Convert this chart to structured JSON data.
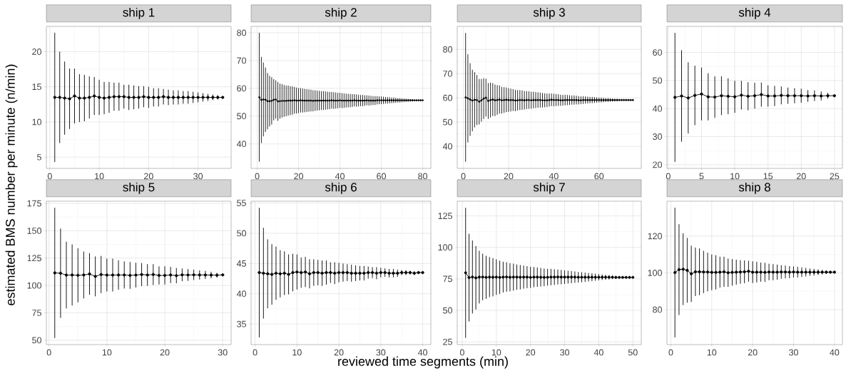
{
  "chart_data": [
    {
      "type": "line",
      "title": "ship 1",
      "ylabel": "estimated BMS number per minute (n/min)",
      "grid": true,
      "marker": "circle",
      "x": [
        1,
        2,
        3,
        4,
        5,
        6,
        7,
        8,
        9,
        10,
        11,
        12,
        13,
        14,
        15,
        16,
        17,
        18,
        19,
        20,
        21,
        22,
        23,
        24,
        25,
        26,
        27,
        28,
        29,
        30,
        31,
        32,
        33,
        34,
        35
      ],
      "series": [
        {
          "color": "#000000",
          "values": [
            13.5,
            13.5,
            13.4,
            13.3,
            13.7,
            13.4,
            13.4,
            13.5,
            13.7,
            13.5,
            13.4,
            13.5,
            13.6,
            13.6,
            13.6,
            13.5,
            13.5,
            13.5,
            13.6,
            13.5,
            13.5,
            13.5,
            13.6,
            13.5,
            13.5,
            13.5,
            13.5,
            13.5,
            13.5,
            13.5,
            13.5,
            13.5,
            13.5,
            13.5,
            13.5
          ],
          "errors": [
            9.2,
            6.5,
            5.2,
            4.3,
            3.9,
            3.4,
            3.3,
            3.0,
            2.7,
            2.5,
            2.3,
            2.2,
            2.0,
            2.0,
            1.7,
            1.8,
            1.7,
            1.6,
            1.5,
            1.5,
            1.3,
            1.3,
            1.1,
            1.1,
            1.0,
            1.0,
            0.9,
            0.9,
            0.8,
            0.7,
            0.6,
            0.5,
            0.4,
            0.3,
            null
          ]
        }
      ],
      "xlim": [
        -0.7,
        36.7
      ],
      "ylim": [
        3.4,
        23.6
      ],
      "xticks": [
        0,
        10,
        20,
        30
      ],
      "yticks": [
        5,
        10,
        15,
        20
      ]
    },
    {
      "type": "line",
      "title": "ship 2",
      "grid": true,
      "marker": "circle",
      "x": [
        1,
        2,
        3,
        4,
        5,
        6,
        7,
        8,
        9,
        10,
        11,
        12,
        13,
        14,
        15,
        16,
        17,
        18,
        19,
        20,
        21,
        22,
        23,
        24,
        25,
        26,
        27,
        28,
        29,
        30,
        31,
        32,
        33,
        34,
        35,
        36,
        37,
        38,
        39,
        40,
        41,
        42,
        43,
        44,
        45,
        46,
        47,
        48,
        49,
        50,
        51,
        52,
        53,
        54,
        55,
        56,
        57,
        58,
        59,
        60,
        61,
        62,
        63,
        64,
        65,
        66,
        67,
        68,
        69,
        70,
        71,
        72,
        73,
        74,
        75,
        76,
        77,
        78,
        79,
        80
      ],
      "series": [
        {
          "color": "#000000",
          "values": [
            56.8,
            55.8,
            56.0,
            55.9,
            55.4,
            55.4,
            55.5,
            55.9,
            56.0,
            55.3,
            55.4,
            55.5,
            55.5,
            55.5,
            55.6,
            55.6,
            55.6,
            55.7,
            55.6,
            55.6,
            55.7,
            55.6,
            55.6,
            55.6,
            55.6,
            55.6,
            55.5,
            55.6,
            55.6,
            55.6,
            55.6,
            55.6,
            55.6,
            55.6,
            55.6,
            55.7,
            55.6,
            55.6,
            55.6,
            55.7,
            55.6,
            55.6,
            55.6,
            55.6,
            55.6,
            55.6,
            55.7,
            55.6,
            55.6,
            55.6,
            55.6,
            55.6,
            55.7,
            55.6,
            55.6,
            55.6,
            55.6,
            55.7,
            55.7,
            55.7,
            55.7,
            55.7,
            55.7,
            55.7,
            55.7,
            55.7,
            55.7,
            55.7,
            55.7,
            55.7,
            55.7,
            55.7,
            55.7,
            55.7,
            55.7,
            55.7,
            55.7,
            55.7,
            55.7,
            55.7
          ],
          "errors": [
            23.2,
            15.5,
            13.3,
            11.6,
            10.1,
            9.1,
            8.5,
            7.4,
            6.9,
            7.0,
            6.3,
            6.0,
            5.7,
            5.5,
            5.4,
            5.2,
            5.1,
            4.8,
            4.7,
            4.5,
            4.4,
            4.3,
            4.2,
            4.1,
            4.0,
            3.9,
            3.8,
            3.7,
            3.6,
            3.5,
            3.4,
            3.4,
            3.3,
            3.2,
            3.1,
            3.0,
            3.0,
            2.9,
            2.8,
            2.7,
            2.7,
            2.6,
            2.5,
            2.4,
            2.4,
            2.3,
            2.2,
            2.2,
            2.1,
            2.0,
            2.0,
            1.9,
            1.8,
            1.8,
            1.7,
            1.6,
            1.6,
            1.5,
            1.4,
            1.4,
            1.3,
            1.2,
            1.2,
            1.1,
            1.0,
            1.0,
            0.9,
            0.8,
            0.8,
            0.7,
            0.6,
            0.6,
            0.5,
            0.4,
            0.4,
            null,
            null,
            null,
            null,
            null
          ]
        }
      ],
      "xlim": [
        -2.95,
        83.95
      ],
      "ylim": [
        31.2,
        82.3
      ],
      "xticks": [
        0,
        20,
        40,
        60,
        80
      ],
      "yticks": [
        40,
        50,
        60,
        70,
        80
      ]
    },
    {
      "type": "line",
      "title": "ship 3",
      "grid": true,
      "marker": "circle",
      "x": [
        1,
        2,
        3,
        4,
        5,
        6,
        7,
        8,
        9,
        10,
        11,
        12,
        13,
        14,
        15,
        16,
        17,
        18,
        19,
        20,
        21,
        22,
        23,
        24,
        25,
        26,
        27,
        28,
        29,
        30,
        31,
        32,
        33,
        34,
        35,
        36,
        37,
        38,
        39,
        40,
        41,
        42,
        43,
        44,
        45,
        46,
        47,
        48,
        49,
        50,
        51,
        52,
        53,
        54,
        55,
        56,
        57,
        58,
        59,
        60,
        61,
        62,
        63,
        64,
        65,
        66,
        67,
        68,
        69,
        70,
        71,
        72,
        73,
        74,
        75
      ],
      "series": [
        {
          "color": "#000000",
          "values": [
            60.2,
            59.8,
            59.3,
            58.9,
            59.2,
            59.1,
            58.4,
            59.0,
            59.7,
            60.1,
            58.7,
            59.1,
            59.3,
            59.0,
            59.1,
            59.3,
            59.0,
            59.1,
            59.2,
            59.1,
            59.1,
            59.1,
            58.9,
            59.0,
            59.1,
            59.1,
            59.0,
            59.1,
            59.1,
            59.0,
            59.1,
            59.1,
            59.1,
            59.1,
            59.0,
            59.0,
            59.0,
            59.1,
            59.2,
            59.1,
            59.1,
            59.1,
            59.0,
            59.0,
            59.1,
            59.1,
            59.1,
            59.1,
            59.1,
            59.1,
            59.0,
            59.0,
            59.1,
            59.1,
            59.1,
            59.1,
            59.1,
            59.1,
            59.1,
            59.1,
            59.1,
            59.1,
            59.1,
            59.1,
            59.1,
            59.1,
            59.1,
            59.1,
            59.1,
            59.1,
            59.1,
            59.1,
            59.1,
            59.1,
            59.1
          ],
          "errors": [
            26.6,
            18.2,
            15.0,
            12.7,
            11.4,
            10.3,
            9.4,
            8.8,
            8.4,
            7.8,
            7.4,
            7.2,
            6.8,
            6.5,
            6.1,
            5.8,
            5.5,
            5.3,
            5.1,
            4.9,
            4.7,
            4.5,
            4.4,
            4.2,
            4.1,
            4.0,
            3.8,
            3.7,
            3.6,
            3.5,
            3.4,
            3.3,
            3.2,
            3.1,
            3.0,
            2.9,
            2.8,
            2.7,
            2.6,
            2.6,
            2.5,
            2.4,
            2.3,
            2.2,
            2.2,
            2.1,
            2.0,
            1.9,
            1.9,
            1.8,
            1.7,
            1.6,
            1.6,
            1.5,
            1.4,
            1.3,
            1.3,
            1.2,
            1.1,
            1.0,
            1.0,
            0.9,
            0.8,
            0.8,
            0.7,
            0.6,
            0.5,
            0.5,
            null,
            null,
            null,
            null,
            null,
            null,
            null
          ]
        }
      ],
      "xlim": [
        -2.7,
        78.7
      ],
      "ylim": [
        30.9,
        89.5
      ],
      "xticks": [
        0,
        20,
        40,
        60
      ],
      "yticks": [
        40,
        50,
        60,
        70,
        80
      ]
    },
    {
      "type": "line",
      "title": "ship 4",
      "grid": true,
      "marker": "circle",
      "x": [
        1,
        2,
        3,
        4,
        5,
        6,
        7,
        8,
        9,
        10,
        11,
        12,
        13,
        14,
        15,
        16,
        17,
        18,
        19,
        20,
        21,
        22,
        23,
        24,
        25
      ],
      "series": [
        {
          "color": "#000000",
          "values": [
            44.0,
            44.5,
            43.8,
            44.7,
            45.2,
            44.2,
            44.1,
            44.6,
            44.4,
            44.2,
            44.8,
            44.4,
            44.6,
            45.0,
            44.5,
            44.5,
            44.7,
            44.6,
            44.6,
            44.6,
            44.5,
            44.6,
            44.5,
            44.6,
            44.6
          ],
          "errors": [
            23.0,
            16.3,
            12.7,
            10.6,
            9.4,
            8.4,
            7.4,
            6.9,
            6.4,
            5.7,
            5.1,
            5.0,
            4.6,
            4.3,
            3.8,
            3.6,
            3.2,
            2.9,
            2.7,
            2.5,
            2.1,
            1.9,
            1.6,
            1.0,
            null
          ]
        }
      ],
      "xlim": [
        -0.2,
        26.2
      ],
      "ylim": [
        18.7,
        69.3
      ],
      "xticks": [
        0,
        5,
        10,
        15,
        20,
        25
      ],
      "yticks": [
        20,
        30,
        40,
        50,
        60
      ]
    },
    {
      "type": "line",
      "title": "ship 5",
      "grid": true,
      "marker": "circle",
      "x": [
        1,
        2,
        3,
        4,
        5,
        6,
        7,
        8,
        9,
        10,
        11,
        12,
        13,
        14,
        15,
        16,
        17,
        18,
        19,
        20,
        21,
        22,
        23,
        24,
        25,
        26,
        27,
        28,
        29,
        30
      ],
      "series": [
        {
          "color": "#000000",
          "values": [
            111.5,
            111.2,
            109.5,
            109.6,
            109.3,
            109.6,
            110.5,
            108.3,
            110.0,
            109.5,
            109.5,
            109.6,
            109.6,
            109.2,
            109.5,
            110.0,
            109.6,
            110.0,
            109.2,
            109.2,
            109.6,
            109.0,
            109.7,
            109.6,
            109.7,
            109.6,
            109.6,
            109.5,
            109.4,
            109.7
          ],
          "errors": [
            59.5,
            40.8,
            30.5,
            27.9,
            24.7,
            21.4,
            19.0,
            18.2,
            17.0,
            15.0,
            15.0,
            13.4,
            12.4,
            12.3,
            11.3,
            10.5,
            9.9,
            9.5,
            8.3,
            8.3,
            7.4,
            7.0,
            5.8,
            5.4,
            4.8,
            4.2,
            3.7,
            3.0,
            2.1,
            null
          ]
        }
      ],
      "xlim": [
        -0.45,
        31.45
      ],
      "ylim": [
        46,
        177
      ],
      "xticks": [
        0,
        10,
        20,
        30
      ],
      "yticks": [
        50,
        75,
        100,
        125,
        150,
        175
      ]
    },
    {
      "type": "line",
      "title": "ship 6",
      "xlabel": "reviewed time segments (min)",
      "grid": true,
      "marker": "circle",
      "x": [
        1,
        2,
        3,
        4,
        5,
        6,
        7,
        8,
        9,
        10,
        11,
        12,
        13,
        14,
        15,
        16,
        17,
        18,
        19,
        20,
        21,
        22,
        23,
        24,
        25,
        26,
        27,
        28,
        29,
        30,
        31,
        32,
        33,
        34,
        35,
        36,
        37,
        38,
        39,
        40
      ],
      "series": [
        {
          "color": "#000000",
          "values": [
            43.5,
            43.4,
            43.3,
            43.2,
            43.4,
            43.3,
            43.4,
            43.2,
            43.5,
            43.6,
            43.5,
            43.6,
            43.3,
            43.5,
            43.5,
            43.4,
            43.5,
            43.5,
            43.4,
            43.5,
            43.5,
            43.5,
            43.4,
            43.4,
            43.4,
            43.4,
            43.5,
            43.5,
            43.4,
            43.5,
            43.5,
            43.4,
            43.4,
            43.4,
            43.5,
            43.5,
            43.5,
            43.4,
            43.5,
            43.5
          ],
          "errors": [
            10.7,
            7.5,
            5.7,
            5.0,
            4.4,
            3.9,
            3.6,
            3.3,
            3.1,
            2.9,
            2.5,
            2.5,
            2.4,
            2.2,
            2.1,
            2.1,
            2.0,
            1.7,
            1.8,
            1.6,
            1.5,
            1.4,
            1.4,
            1.3,
            1.2,
            1.2,
            1.0,
            0.9,
            1.0,
            0.8,
            0.7,
            0.7,
            0.7,
            0.6,
            0.4,
            0.4,
            0.3,
            0.3,
            null,
            null
          ]
        }
      ],
      "xlim": [
        -0.95,
        41.95
      ],
      "ylim": [
        31.6,
        55.3
      ],
      "xticks": [
        0,
        10,
        20,
        30,
        40
      ],
      "yticks": [
        35,
        40,
        45,
        50,
        55
      ]
    },
    {
      "type": "line",
      "title": "ship 7",
      "grid": true,
      "marker": "circle",
      "x": [
        1,
        2,
        3,
        4,
        5,
        6,
        7,
        8,
        9,
        10,
        11,
        12,
        13,
        14,
        15,
        16,
        17,
        18,
        19,
        20,
        21,
        22,
        23,
        24,
        25,
        26,
        27,
        28,
        29,
        30,
        31,
        32,
        33,
        34,
        35,
        36,
        37,
        38,
        39,
        40,
        41,
        42,
        43,
        44,
        45,
        46,
        47,
        48,
        49,
        50
      ],
      "series": [
        {
          "color": "#000000",
          "values": [
            79.8,
            76.0,
            76.5,
            75.8,
            76.4,
            76.5,
            76.2,
            76.4,
            76.3,
            76.4,
            76.2,
            76.4,
            76.5,
            76.3,
            76.4,
            76.4,
            76.3,
            76.4,
            76.4,
            76.2,
            76.4,
            76.4,
            76.3,
            76.2,
            76.3,
            76.4,
            76.4,
            76.5,
            76.4,
            76.4,
            76.4,
            76.4,
            76.4,
            76.3,
            76.3,
            76.3,
            76.3,
            76.3,
            76.3,
            76.3,
            76.3,
            76.3,
            76.3,
            76.3,
            76.2,
            76.2,
            76.2,
            76.2,
            76.2,
            76.2
          ],
          "errors": [
            51.7,
            34.8,
            29.0,
            25.2,
            20.9,
            18.5,
            17.1,
            15.9,
            15.2,
            14.1,
            13.2,
            12.2,
            11.7,
            11.2,
            10.7,
            10.0,
            9.7,
            9.2,
            8.7,
            8.4,
            8.0,
            7.7,
            7.4,
            7.0,
            6.7,
            6.5,
            6.2,
            5.9,
            5.7,
            5.4,
            5.1,
            4.8,
            4.5,
            4.2,
            4.0,
            3.7,
            3.4,
            3.1,
            2.8,
            2.5,
            2.2,
            1.9,
            1.7,
            1.4,
            1.1,
            null,
            null,
            null,
            null,
            null
          ]
        }
      ],
      "xlim": [
        -1.45,
        52.45
      ],
      "ylim": [
        22.8,
        136.7
      ],
      "xticks": [
        0,
        10,
        20,
        30,
        40,
        50
      ],
      "yticks": [
        25,
        50,
        75,
        100,
        125
      ]
    },
    {
      "type": "line",
      "title": "ship 8",
      "grid": true,
      "marker": "circle",
      "x": [
        1,
        2,
        3,
        4,
        5,
        6,
        7,
        8,
        9,
        10,
        11,
        12,
        13,
        14,
        15,
        16,
        17,
        18,
        19,
        20,
        21,
        22,
        23,
        24,
        25,
        26,
        27,
        28,
        29,
        30,
        31,
        32,
        33,
        34,
        35,
        36,
        37,
        38,
        39,
        40
      ],
      "series": [
        {
          "color": "#000000",
          "values": [
            100.2,
            101.8,
            102.0,
            101.4,
            99.5,
            100.6,
            100.6,
            100.5,
            100.5,
            100.3,
            100.3,
            100.4,
            100.6,
            100.1,
            100.3,
            100.4,
            100.5,
            100.6,
            100.9,
            100.4,
            100.4,
            100.4,
            100.3,
            100.5,
            100.4,
            100.4,
            100.5,
            100.5,
            100.4,
            100.5,
            100.4,
            100.4,
            100.4,
            100.4,
            100.4,
            100.4,
            100.4,
            100.4,
            100.4,
            100.4
          ],
          "errors": [
            35.3,
            24.7,
            19.5,
            17.6,
            15.3,
            13.2,
            12.7,
            11.5,
            10.5,
            9.7,
            9.3,
            8.4,
            8.2,
            7.7,
            7.2,
            6.8,
            6.4,
            6.2,
            5.7,
            5.9,
            5.6,
            5.2,
            5.2,
            4.5,
            4.4,
            4.1,
            3.7,
            3.5,
            3.3,
            3.0,
            2.9,
            2.6,
            2.3,
            2.0,
            1.8,
            1.5,
            1.2,
            0.9,
            null,
            null
          ]
        }
      ],
      "xlim": [
        -0.95,
        41.95
      ],
      "ylim": [
        61,
        139
      ],
      "xticks": [
        0,
        10,
        20,
        30,
        40
      ],
      "yticks": [
        80,
        100,
        120
      ]
    }
  ]
}
